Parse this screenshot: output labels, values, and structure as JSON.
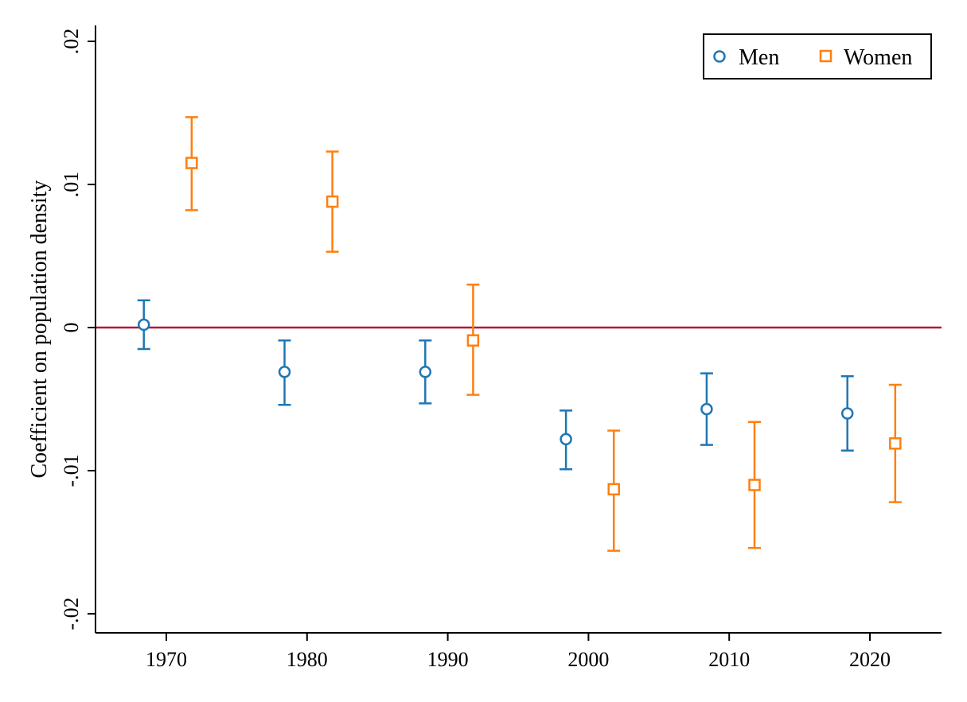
{
  "chart_data": {
    "type": "scatter",
    "title": "",
    "xlabel": "",
    "ylabel": "Coefficient on population density",
    "xlim": [
      1965,
      2025
    ],
    "ylim": [
      -0.021,
      0.021
    ],
    "x_ticks": [
      1970,
      1980,
      1990,
      2000,
      2010,
      2020
    ],
    "x_tick_labels": [
      "1970",
      "1980",
      "1990",
      "2000",
      "2010",
      "2020"
    ],
    "y_ticks": [
      -0.02,
      -0.01,
      0,
      0.01,
      0.02
    ],
    "y_tick_labels": [
      "-.02",
      "-.01",
      "0",
      ".01",
      ".02"
    ],
    "reference_line": {
      "y": 0,
      "color": "#b5173e"
    },
    "grid": false,
    "legend": {
      "placement": "top-right"
    },
    "series": [
      {
        "name": "Men",
        "marker": "circle",
        "color": "#1f77b4",
        "x": [
          1968.4,
          1978.4,
          1988.4,
          1998.4,
          2008.4,
          2018.4
        ],
        "y": [
          0.0002,
          -0.0031,
          -0.0031,
          -0.0078,
          -0.0057,
          -0.006
        ],
        "ci_low": [
          -0.0015,
          -0.0054,
          -0.0053,
          -0.0099,
          -0.0082,
          -0.0086
        ],
        "ci_high": [
          0.0019,
          -0.0009,
          -0.0009,
          -0.0058,
          -0.0032,
          -0.0034
        ]
      },
      {
        "name": "Women",
        "marker": "square",
        "color": "#ff7f0e",
        "x": [
          1971.8,
          1981.8,
          1991.8,
          2001.8,
          2011.8,
          2021.8
        ],
        "y": [
          0.0115,
          0.0088,
          -0.0009,
          -0.0113,
          -0.011,
          -0.0081
        ],
        "ci_low": [
          0.0082,
          0.0053,
          -0.0047,
          -0.0156,
          -0.0154,
          -0.0122
        ],
        "ci_high": [
          0.0147,
          0.0123,
          0.003,
          -0.0072,
          -0.0066,
          -0.004
        ]
      }
    ]
  }
}
